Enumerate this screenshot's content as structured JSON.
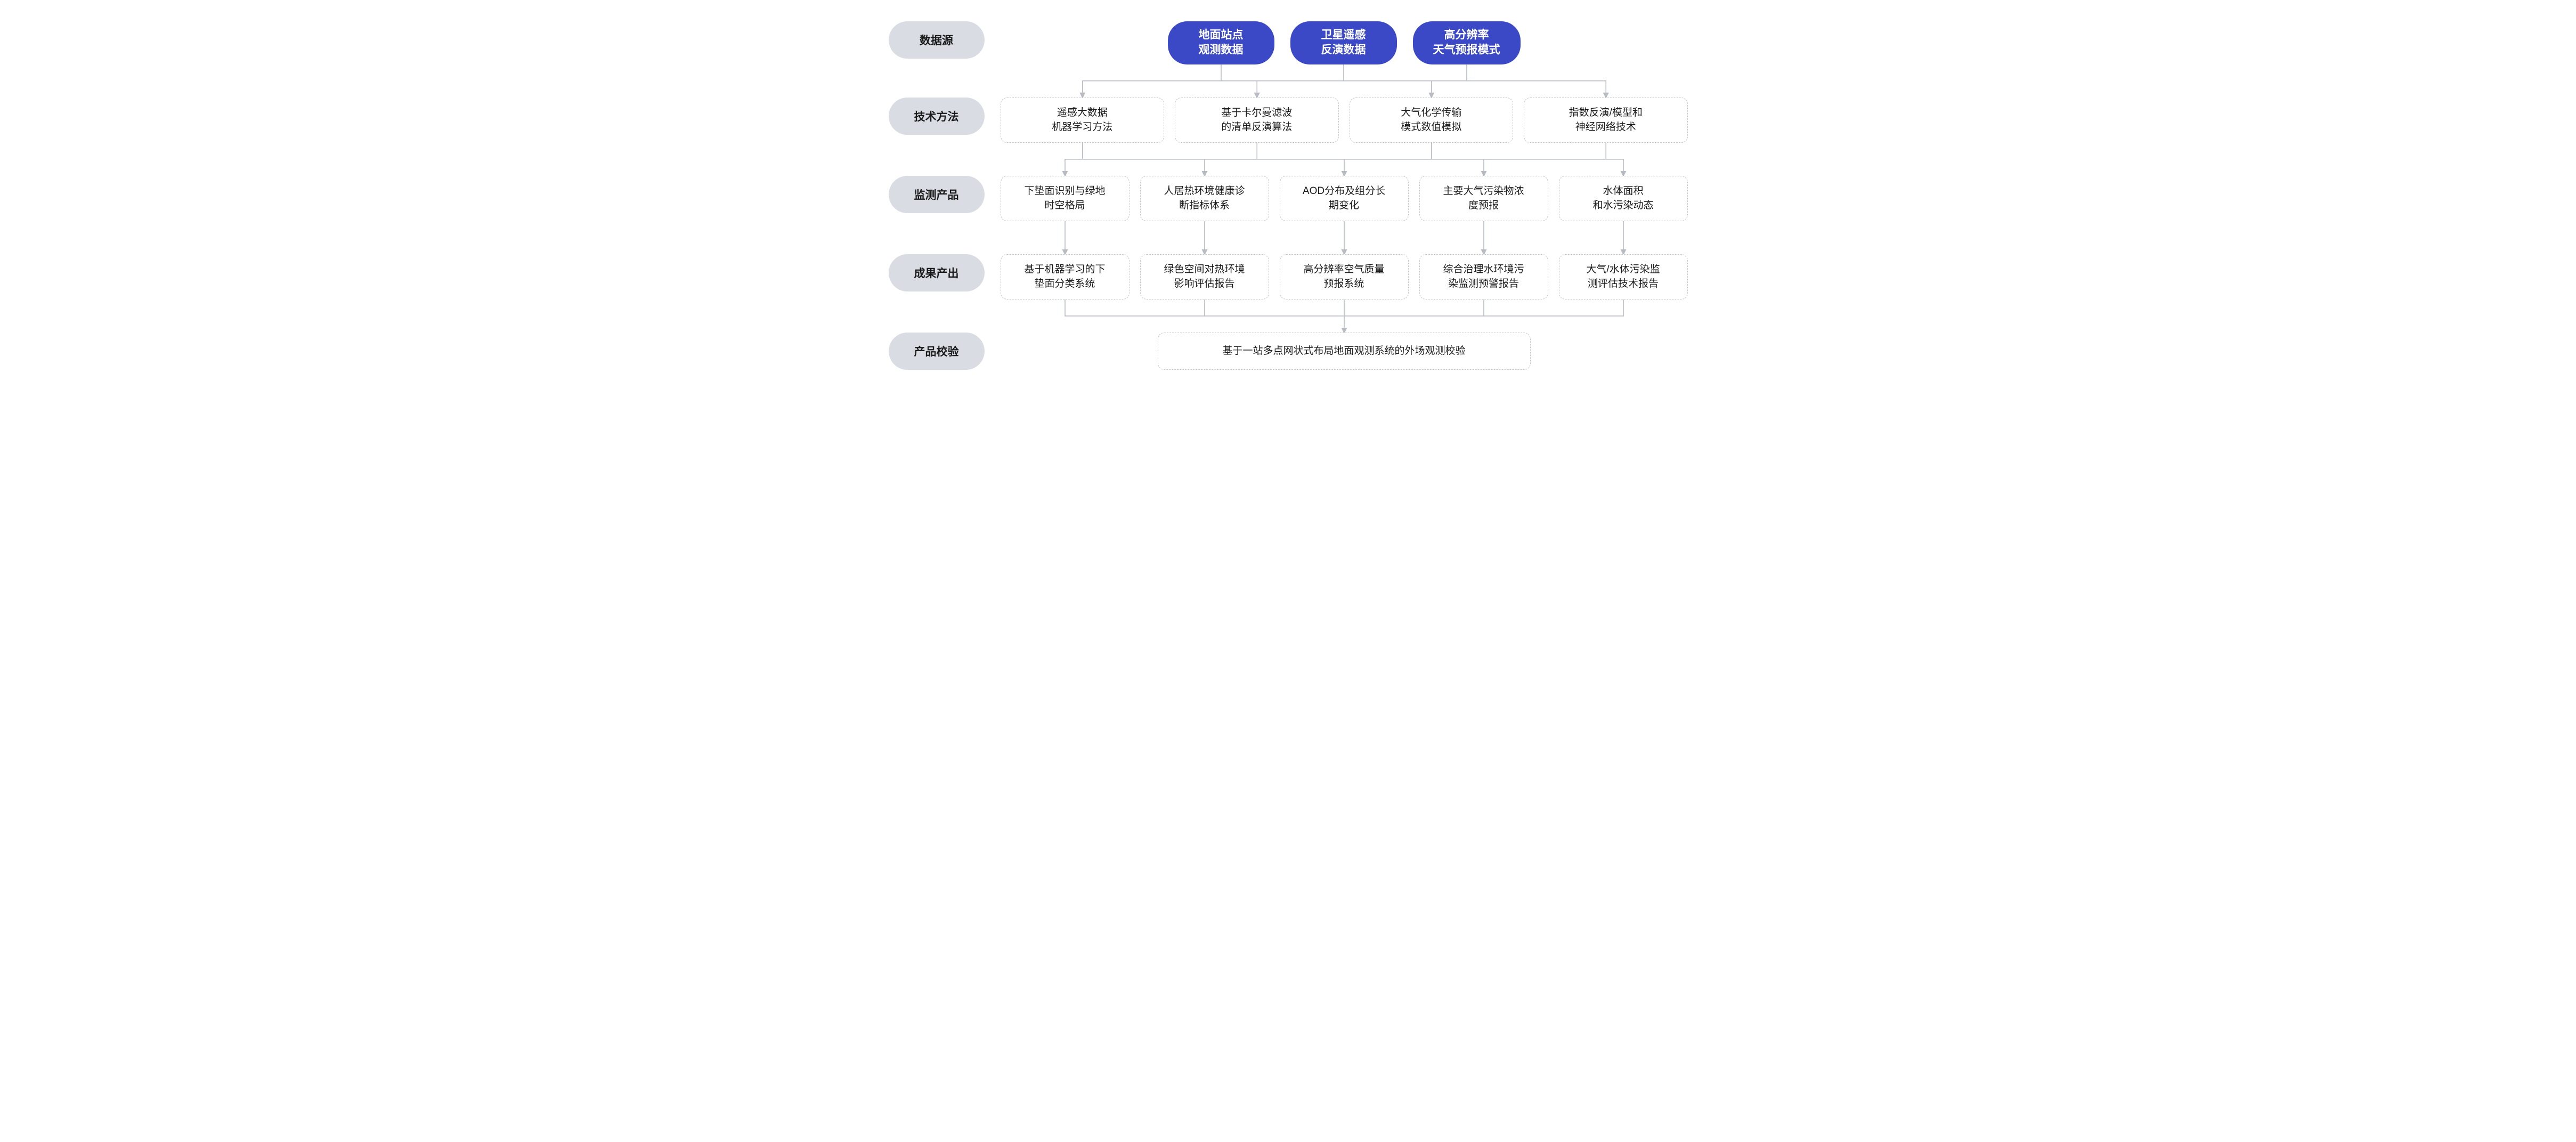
{
  "type": "flowchart",
  "rows": {
    "r1": {
      "label": "数据源"
    },
    "r2": {
      "label": "技术方法"
    },
    "r3": {
      "label": "监测产品"
    },
    "r4": {
      "label": "成果产出"
    },
    "r5": {
      "label": "产品校验"
    }
  },
  "sources": [
    {
      "l1": "地面站点",
      "l2": "观测数据"
    },
    {
      "l1": "卫星遥感",
      "l2": "反演数据"
    },
    {
      "l1": "高分辨率",
      "l2": "天气预报模式"
    }
  ],
  "methods": [
    {
      "l1": "遥感大数据",
      "l2": "机器学习方法"
    },
    {
      "l1": "基于卡尔曼滤波",
      "l2": "的清单反演算法"
    },
    {
      "l1": "大气化学传输",
      "l2": "模式数值模拟"
    },
    {
      "l1": "指数反演/模型和",
      "l2": "神经网络技术"
    }
  ],
  "products": [
    {
      "l1": "下垫面识别与绿地",
      "l2": "时空格局"
    },
    {
      "l1": "人居热环境健康诊",
      "l2": "断指标体系"
    },
    {
      "l1": "AOD分布及组分长",
      "l2": "期变化"
    },
    {
      "l1": "主要大气污染物浓",
      "l2": "度预报"
    },
    {
      "l1": "水体面积",
      "l2": "和水污染动态"
    }
  ],
  "outputs": [
    {
      "l1": "基于机器学习的下",
      "l2": "垫面分类系统"
    },
    {
      "l1": "绿色空间对热环境",
      "l2": "影响评估报告"
    },
    {
      "l1": "高分辨率空气质量",
      "l2": "预报系统"
    },
    {
      "l1": "综合治理水环境污",
      "l2": "染监测预警报告"
    },
    {
      "l1": "大气/水体污染监",
      "l2": "测评估技术报告"
    }
  ],
  "validation": {
    "text": "基于一站多点网状式布局地面观测系统的外场观测校验"
  },
  "style": {
    "pill_bg": "#3b49c6",
    "pill_fg": "#ffffff",
    "label_bg": "#d9dde3",
    "label_fg": "#1a1a1a",
    "box_border": "#c2c6cc",
    "box_fg": "#1a1a1a",
    "connector_color": "#b8bcc2",
    "connector_width": 1.6,
    "background": "#ffffff",
    "pill_fontsize": 21,
    "label_fontsize": 21,
    "box_fontsize": 19,
    "border_radius_pill": 36,
    "border_radius_box": 12,
    "row_gap": 62
  }
}
